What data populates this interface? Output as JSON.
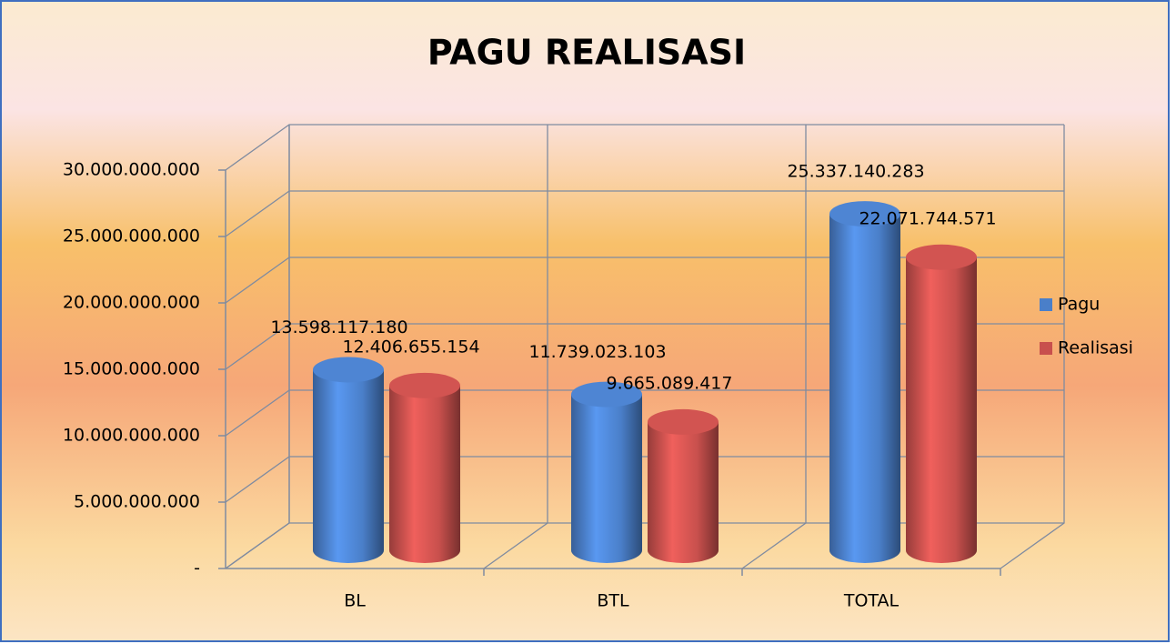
{
  "chart_data": {
    "type": "bar3d",
    "title": "PAGU REALISASI",
    "categories": [
      "BL",
      "BTL",
      "TOTAL"
    ],
    "series": [
      {
        "name": "Pagu",
        "color": "#4a7fc9",
        "values": [
          13598117180,
          11739023103,
          25337140283
        ],
        "value_labels": [
          "13.598.117.180",
          "11.739.023.103",
          "25.337.140.283"
        ]
      },
      {
        "name": "Realisasi",
        "color": "#c8504d",
        "values": [
          12406655154,
          9665089417,
          22071744571
        ],
        "value_labels": [
          "12.406.655.154",
          "9.665.089.417",
          "22.071.744.571"
        ]
      }
    ],
    "ylim": [
      0,
      30000000000
    ],
    "yticks": [
      {
        "value": 0,
        "label": "-"
      },
      {
        "value": 5000000000,
        "label": "5.000.000.000"
      },
      {
        "value": 10000000000,
        "label": "10.000.000.000"
      },
      {
        "value": 15000000000,
        "label": "15.000.000.000"
      },
      {
        "value": 20000000000,
        "label": "20.000.000.000"
      },
      {
        "value": 25000000000,
        "label": "25.000.000.000"
      },
      {
        "value": 30000000000,
        "label": "30.000.000.000"
      }
    ],
    "grid": true,
    "legend": "right"
  }
}
